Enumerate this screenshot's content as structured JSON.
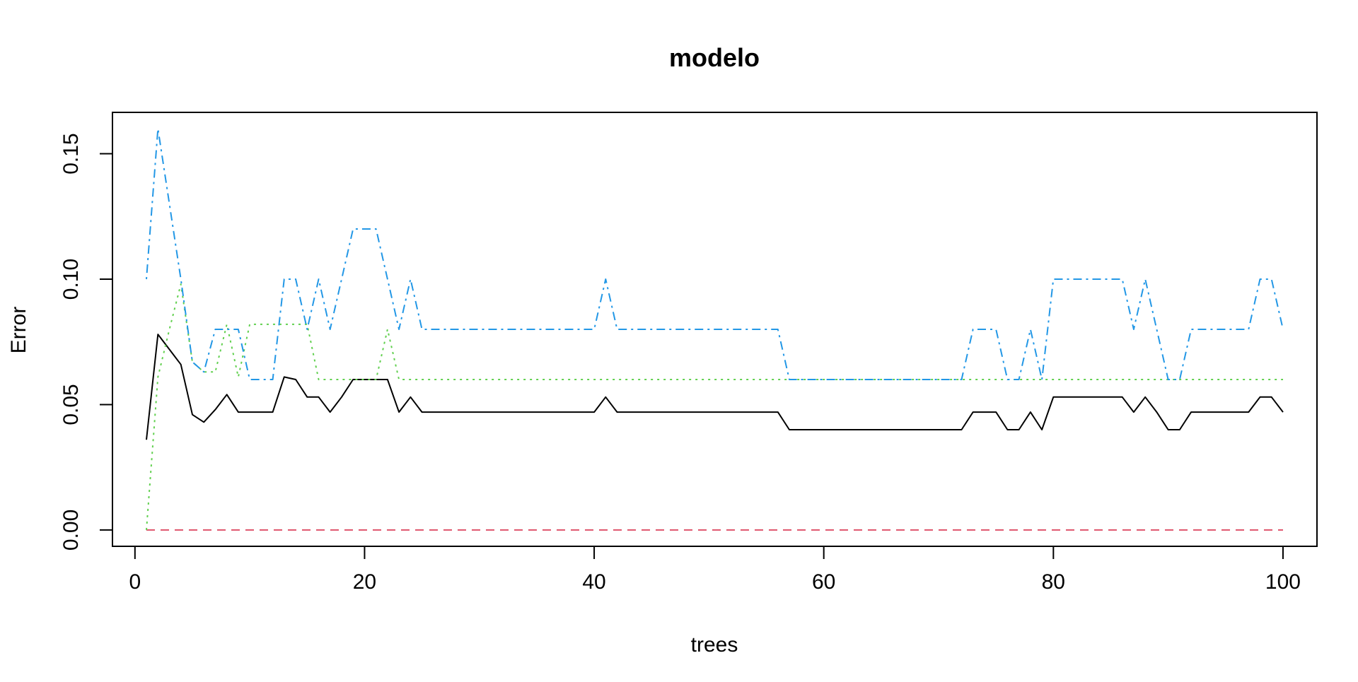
{
  "chart_data": {
    "type": "line",
    "title": "modelo",
    "xlabel": "trees",
    "ylabel": "Error",
    "xlim": [
      -1.96,
      102.96
    ],
    "ylim": [
      -0.0065,
      0.1665
    ],
    "xticks": [
      0,
      20,
      40,
      60,
      80,
      100
    ],
    "yticks": [
      0.0,
      0.05,
      0.1,
      0.15
    ],
    "xtick_labels": [
      "0",
      "20",
      "40",
      "60",
      "80",
      "100"
    ],
    "ytick_labels": [
      "0.00",
      "0.05",
      "0.10",
      "0.15"
    ],
    "grid": false,
    "legend": "none",
    "x": [
      1,
      2,
      3,
      4,
      5,
      6,
      7,
      8,
      9,
      10,
      11,
      12,
      13,
      14,
      15,
      16,
      17,
      18,
      19,
      20,
      21,
      22,
      23,
      24,
      25,
      26,
      27,
      28,
      29,
      30,
      31,
      32,
      33,
      34,
      35,
      36,
      37,
      38,
      39,
      40,
      41,
      42,
      43,
      44,
      45,
      46,
      47,
      48,
      49,
      50,
      51,
      52,
      53,
      54,
      55,
      56,
      57,
      58,
      59,
      60,
      61,
      62,
      63,
      64,
      65,
      66,
      67,
      68,
      69,
      70,
      71,
      72,
      73,
      74,
      75,
      76,
      77,
      78,
      79,
      80,
      81,
      82,
      83,
      84,
      85,
      86,
      87,
      88,
      89,
      90,
      91,
      92,
      93,
      94,
      95,
      96,
      97,
      98,
      99,
      100
    ],
    "series": [
      {
        "color": "#000000",
        "dash": "solid",
        "values": [
          0.036,
          0.078,
          0.072,
          0.066,
          0.046,
          0.043,
          0.048,
          0.054,
          0.047,
          0.047,
          0.047,
          0.047,
          0.061,
          0.06,
          0.053,
          0.053,
          0.047,
          0.053,
          0.06,
          0.06,
          0.06,
          0.06,
          0.047,
          0.053,
          0.047,
          0.047,
          0.047,
          0.047,
          0.047,
          0.047,
          0.047,
          0.047,
          0.047,
          0.047,
          0.047,
          0.047,
          0.047,
          0.047,
          0.047,
          0.047,
          0.053,
          0.047,
          0.047,
          0.047,
          0.047,
          0.047,
          0.047,
          0.047,
          0.047,
          0.047,
          0.047,
          0.047,
          0.047,
          0.047,
          0.047,
          0.047,
          0.04,
          0.04,
          0.04,
          0.04,
          0.04,
          0.04,
          0.04,
          0.04,
          0.04,
          0.04,
          0.04,
          0.04,
          0.04,
          0.04,
          0.04,
          0.04,
          0.047,
          0.047,
          0.047,
          0.04,
          0.04,
          0.047,
          0.04,
          0.053,
          0.053,
          0.053,
          0.053,
          0.053,
          0.053,
          0.053,
          0.047,
          0.053,
          0.047,
          0.04,
          0.04,
          0.047,
          0.047,
          0.047,
          0.047,
          0.047,
          0.047,
          0.053,
          0.053,
          0.047
        ]
      },
      {
        "color": "#DF536B",
        "dash": "dashed",
        "values": [
          0,
          0,
          0,
          0,
          0,
          0,
          0,
          0,
          0,
          0,
          0,
          0,
          0,
          0,
          0,
          0,
          0,
          0,
          0,
          0,
          0,
          0,
          0,
          0,
          0,
          0,
          0,
          0,
          0,
          0,
          0,
          0,
          0,
          0,
          0,
          0,
          0,
          0,
          0,
          0,
          0,
          0,
          0,
          0,
          0,
          0,
          0,
          0,
          0,
          0,
          0,
          0,
          0,
          0,
          0,
          0,
          0,
          0,
          0,
          0,
          0,
          0,
          0,
          0,
          0,
          0,
          0,
          0,
          0,
          0,
          0,
          0,
          0,
          0,
          0,
          0,
          0,
          0,
          0,
          0,
          0,
          0,
          0,
          0,
          0,
          0,
          0,
          0,
          0,
          0,
          0,
          0,
          0,
          0,
          0,
          0,
          0,
          0,
          0,
          0
        ]
      },
      {
        "color": "#61D04F",
        "dash": "dotted",
        "values": [
          0.0,
          0.061,
          0.08,
          0.098,
          0.067,
          0.063,
          0.063,
          0.082,
          0.061,
          0.082,
          0.082,
          0.082,
          0.082,
          0.082,
          0.082,
          0.06,
          0.06,
          0.06,
          0.06,
          0.06,
          0.06,
          0.08,
          0.06,
          0.06,
          0.06,
          0.06,
          0.06,
          0.06,
          0.06,
          0.06,
          0.06,
          0.06,
          0.06,
          0.06,
          0.06,
          0.06,
          0.06,
          0.06,
          0.06,
          0.06,
          0.06,
          0.06,
          0.06,
          0.06,
          0.06,
          0.06,
          0.06,
          0.06,
          0.06,
          0.06,
          0.06,
          0.06,
          0.06,
          0.06,
          0.06,
          0.06,
          0.06,
          0.06,
          0.06,
          0.06,
          0.06,
          0.06,
          0.06,
          0.06,
          0.06,
          0.06,
          0.06,
          0.06,
          0.06,
          0.06,
          0.06,
          0.06,
          0.06,
          0.06,
          0.06,
          0.06,
          0.06,
          0.06,
          0.06,
          0.06,
          0.06,
          0.06,
          0.06,
          0.06,
          0.06,
          0.06,
          0.06,
          0.06,
          0.06,
          0.06,
          0.06,
          0.06,
          0.06,
          0.06,
          0.06,
          0.06,
          0.06,
          0.06,
          0.06,
          0.06
        ]
      },
      {
        "color": "#2297E6",
        "dash": "dashdot",
        "values": [
          0.1,
          0.16,
          0.13,
          0.1,
          0.067,
          0.063,
          0.08,
          0.08,
          0.08,
          0.06,
          0.06,
          0.06,
          0.1,
          0.1,
          0.08,
          0.1,
          0.08,
          0.1,
          0.12,
          0.12,
          0.12,
          0.1,
          0.08,
          0.1,
          0.08,
          0.08,
          0.08,
          0.08,
          0.08,
          0.08,
          0.08,
          0.08,
          0.08,
          0.08,
          0.08,
          0.08,
          0.08,
          0.08,
          0.08,
          0.08,
          0.1,
          0.08,
          0.08,
          0.08,
          0.08,
          0.08,
          0.08,
          0.08,
          0.08,
          0.08,
          0.08,
          0.08,
          0.08,
          0.08,
          0.08,
          0.08,
          0.06,
          0.06,
          0.06,
          0.06,
          0.06,
          0.06,
          0.06,
          0.06,
          0.06,
          0.06,
          0.06,
          0.06,
          0.06,
          0.06,
          0.06,
          0.06,
          0.08,
          0.08,
          0.08,
          0.06,
          0.06,
          0.08,
          0.06,
          0.1,
          0.1,
          0.1,
          0.1,
          0.1,
          0.1,
          0.1,
          0.08,
          0.1,
          0.08,
          0.06,
          0.06,
          0.08,
          0.08,
          0.08,
          0.08,
          0.08,
          0.08,
          0.1,
          0.1,
          0.08
        ]
      }
    ]
  }
}
